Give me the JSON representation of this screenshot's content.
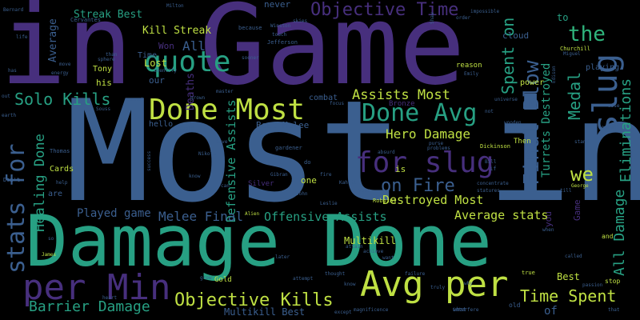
{
  "cloud": {
    "background": "#000000",
    "words": [
      {
        "text": "Most in",
        "color": "#3b5f8f"
      },
      {
        "text": "in Game",
        "color": "#472f7d"
      },
      {
        "text": "Damage Done",
        "color": "#27a083"
      },
      {
        "text": "per Min",
        "color": "#472f7d"
      },
      {
        "text": "Avg per",
        "color": "#bfe043"
      },
      {
        "text": "Done Most",
        "color": "#bfe043"
      },
      {
        "text": "for slug",
        "color": "#472f7d"
      },
      {
        "text": "Final Blow",
        "color": "#3b5f8f"
      },
      {
        "text": "slug",
        "color": "#3b5f8f"
      },
      {
        "text": "quote",
        "color": "#27a083"
      },
      {
        "text": "Done Avg",
        "color": "#27a083"
      },
      {
        "text": "Objective Time",
        "color": "#472f7d"
      },
      {
        "text": "Objective Kills",
        "color": "#bfe043"
      },
      {
        "text": "stats for",
        "color": "#3b5f8f"
      },
      {
        "text": "Solo Kills",
        "color": "#27a083"
      },
      {
        "text": "Assists Most",
        "color": "#bfe043"
      },
      {
        "text": "Hero Damage",
        "color": "#bfe043"
      },
      {
        "text": "the",
        "color": "#2fb47c"
      },
      {
        "text": "we",
        "color": "#bfe043"
      },
      {
        "text": "Time Spent",
        "color": "#bfe043"
      },
      {
        "text": "Barrier Damage",
        "color": "#27a083"
      },
      {
        "text": "Spent on",
        "color": "#27a083"
      },
      {
        "text": "Medal",
        "color": "#27a083"
      },
      {
        "text": "All Damage",
        "color": "#27a083"
      },
      {
        "text": "Eliminations",
        "color": "#27a083"
      },
      {
        "text": "Healing Done",
        "color": "#27a083"
      },
      {
        "text": "Defensive Assists",
        "color": "#27a083"
      },
      {
        "text": "Offensive Assists",
        "color": "#27a083"
      },
      {
        "text": "on Fire",
        "color": "#3b5f8f"
      },
      {
        "text": "Destroyed Most",
        "color": "#bfe043"
      },
      {
        "text": "Average stats",
        "color": "#bfe043"
      },
      {
        "text": "Melee Final",
        "color": "#3b5f8f"
      },
      {
        "text": "Played game",
        "color": "#3b5f8f"
      },
      {
        "text": "Streak Best",
        "color": "#27a083"
      },
      {
        "text": "Kill Streak",
        "color": "#bfe043"
      },
      {
        "text": "Turrets Destroyed",
        "color": "#27a083"
      },
      {
        "text": "Multikill",
        "color": "#bfe043"
      },
      {
        "text": "Multikill Best",
        "color": "#3b5f8f"
      },
      {
        "text": "Best Melee",
        "color": "#3b5f8f"
      },
      {
        "text": "Deaths",
        "color": "#472f7d"
      },
      {
        "text": "All",
        "color": "#3b5f8f"
      },
      {
        "text": "Average",
        "color": "#3b5f8f"
      },
      {
        "text": "Lost",
        "color": "#bfe043"
      },
      {
        "text": "Won",
        "color": "#472f7d"
      },
      {
        "text": "Time",
        "color": "#3b5f8f"
      },
      {
        "text": "Tony",
        "color": "#bfe043"
      },
      {
        "text": "his",
        "color": "#bfe043"
      },
      {
        "text": "our",
        "color": "#3b5f8f"
      },
      {
        "text": "Game",
        "color": "#472f7d"
      },
      {
        "text": "you",
        "color": "#472f7d"
      },
      {
        "text": "to",
        "color": "#27a083"
      },
      {
        "text": "never",
        "color": "#3b5f8f"
      },
      {
        "text": "Best",
        "color": "#bfe043"
      },
      {
        "text": "of",
        "color": "#3b5f8f"
      },
      {
        "text": "is",
        "color": "#bfe043"
      },
      {
        "text": "one",
        "color": "#bfe043"
      },
      {
        "text": "are",
        "color": "#3b5f8f"
      },
      {
        "text": "Cards",
        "color": "#bfe043"
      },
      {
        "text": "Gold",
        "color": "#bfe043"
      },
      {
        "text": "Silver",
        "color": "#472f7d"
      },
      {
        "text": "Bronze",
        "color": "#472f7d"
      },
      {
        "text": "hello",
        "color": "#3b5f8f"
      },
      {
        "text": "combat",
        "color": "#3b5f8f"
      },
      {
        "text": "Then",
        "color": "#bfe043"
      },
      {
        "text": "power",
        "color": "#bfe043"
      },
      {
        "text": "cloud",
        "color": "#3b5f8f"
      },
      {
        "text": "playing",
        "color": "#3b5f8f"
      },
      {
        "text": "reason",
        "color": "#bfe043"
      },
      {
        "text": "Thomas",
        "color": "#3b5f8f"
      },
      {
        "text": "Dickinson",
        "color": "#bfe043"
      },
      {
        "text": "Jefferson",
        "color": "#3b5f8f"
      },
      {
        "text": "Churchill",
        "color": "#bfe043"
      },
      {
        "text": "Cervantes",
        "color": "#3b5f8f"
      },
      {
        "text": "Gibran",
        "color": "#3b5f8f"
      },
      {
        "text": "Robbins",
        "color": "#bfe043"
      },
      {
        "text": "Winston",
        "color": "#3b5f8f"
      },
      {
        "text": "Milton",
        "color": "#3b5f8f"
      },
      {
        "text": "Alien",
        "color": "#bfe043"
      },
      {
        "text": "James",
        "color": "#bfe043"
      },
      {
        "text": "John",
        "color": "#3b5f8f"
      },
      {
        "text": "Bernard",
        "color": "#3b5f8f"
      },
      {
        "text": "George",
        "color": "#bfe043"
      },
      {
        "text": "Conrad",
        "color": "#3b5f8f"
      },
      {
        "text": "Miguel",
        "color": "#3b5f8f"
      },
      {
        "text": "gardener",
        "color": "#3b5f8f"
      },
      {
        "text": "stand",
        "color": "#3b5f8f"
      },
      {
        "text": "stop",
        "color": "#bfe043"
      },
      {
        "text": "true",
        "color": "#bfe043"
      },
      {
        "text": "old",
        "color": "#3b5f8f"
      },
      {
        "text": "what",
        "color": "#3b5f8f"
      },
      {
        "text": "interfere",
        "color": "#3b5f8f"
      },
      {
        "text": "universe",
        "color": "#3b5f8f"
      },
      {
        "text": "impossible",
        "color": "#3b5f8f"
      },
      {
        "text": "sooner",
        "color": "#3b5f8f"
      },
      {
        "text": "because",
        "color": "#3b5f8f"
      },
      {
        "text": "touch",
        "color": "#3b5f8f"
      },
      {
        "text": "skies",
        "color": "#3b5f8f"
      },
      {
        "text": "order",
        "color": "#3b5f8f"
      },
      {
        "text": "Don't",
        "color": "#3b5f8f"
      },
      {
        "text": "help",
        "color": "#3b5f8f"
      },
      {
        "text": "heart",
        "color": "#3b5f8f"
      },
      {
        "text": "failure",
        "color": "#3b5f8f"
      },
      {
        "text": "called",
        "color": "#3b5f8f"
      },
      {
        "text": "achieve",
        "color": "#3b5f8f"
      },
      {
        "text": "attain",
        "color": "#3b5f8f"
      },
      {
        "text": "know",
        "color": "#3b5f8f"
      },
      {
        "text": "concentrate",
        "color": "#3b5f8f"
      },
      {
        "text": "statures",
        "color": "#3b5f8f"
      },
      {
        "text": "absurd",
        "color": "#3b5f8f"
      },
      {
        "text": "purse",
        "color": "#3b5f8f"
      },
      {
        "text": "problems",
        "color": "#3b5f8f"
      },
      {
        "text": "magnificence",
        "color": "#3b5f8f"
      },
      {
        "text": "except",
        "color": "#3b5f8f"
      },
      {
        "text": "want",
        "color": "#3b5f8f"
      },
      {
        "text": "later",
        "color": "#3b5f8f"
      },
      {
        "text": "grow",
        "color": "#3b5f8f"
      },
      {
        "text": "attempt",
        "color": "#3b5f8f"
      },
      {
        "text": "thought",
        "color": "#3b5f8f"
      },
      {
        "text": "passion",
        "color": "#3b5f8f"
      },
      {
        "text": "move",
        "color": "#3b5f8f"
      },
      {
        "text": "energy",
        "color": "#3b5f8f"
      },
      {
        "text": "than",
        "color": "#3b5f8f"
      },
      {
        "text": "sphere",
        "color": "#3b5f8f"
      },
      {
        "text": "identify",
        "color": "#3b5f8f"
      },
      {
        "text": "cannot",
        "color": "#3b5f8f"
      },
      {
        "text": "master",
        "color": "#3b5f8f"
      },
      {
        "text": "grown",
        "color": "#3b5f8f"
      },
      {
        "text": "focus",
        "color": "#3b5f8f"
      },
      {
        "text": "born",
        "color": "#3b5f8f"
      },
      {
        "text": "wooden",
        "color": "#3b5f8f"
      },
      {
        "text": "could",
        "color": "#3b5f8f"
      },
      {
        "text": "have",
        "color": "#3b5f8f"
      },
      {
        "text": "Nikola",
        "color": "#3b5f8f"
      },
      {
        "text": "success",
        "color": "#3b5f8f"
      },
      {
        "text": "know",
        "color": "#3b5f8f"
      },
      {
        "text": "truly",
        "color": "#3b5f8f"
      },
      {
        "text": "why",
        "color": "#3b5f8f"
      },
      {
        "text": "life",
        "color": "#3b5f8f"
      },
      {
        "text": "has",
        "color": "#3b5f8f"
      },
      {
        "text": "out",
        "color": "#3b5f8f"
      },
      {
        "text": "earth",
        "color": "#3b5f8f"
      },
      {
        "text": "so",
        "color": "#3b5f8f"
      },
      {
        "text": "can",
        "color": "#3b5f8f"
      },
      {
        "text": "do",
        "color": "#3b5f8f"
      },
      {
        "text": "if",
        "color": "#3b5f8f"
      },
      {
        "text": "till",
        "color": "#3b5f8f"
      },
      {
        "text": "your",
        "color": "#3b5f8f"
      },
      {
        "text": "fire",
        "color": "#3b5f8f"
      },
      {
        "text": "not",
        "color": "#3b5f8f"
      },
      {
        "text": "when",
        "color": "#3b5f8f"
      },
      {
        "text": "that",
        "color": "#3b5f8f"
      },
      {
        "text": "and",
        "color": "#bfe043"
      },
      {
        "text": "Shaw",
        "color": "#3b5f8f"
      },
      {
        "text": "Souss",
        "color": "#3b5f8f"
      },
      {
        "text": "Edison",
        "color": "#3b5f8f"
      },
      {
        "text": "Emily",
        "color": "#3b5f8f"
      },
      {
        "text": "Leslie",
        "color": "#3b5f8f"
      },
      {
        "text": "Bill",
        "color": "#3b5f8f"
      },
      {
        "text": "wise",
        "color": "#3b5f8f"
      },
      {
        "text": "Kahlil",
        "color": "#3b5f8f"
      }
    ]
  }
}
